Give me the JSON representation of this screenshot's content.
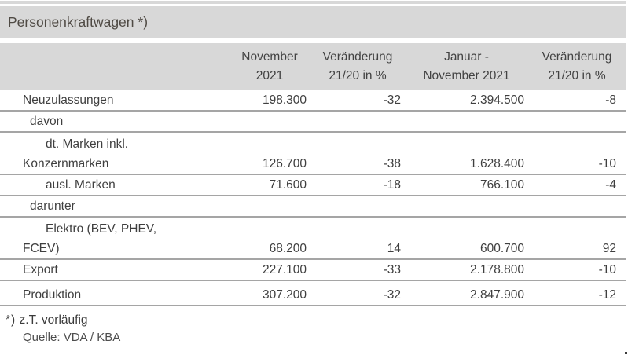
{
  "title": "Personenkraftwagen *)",
  "colors": {
    "band_gray": "#d8d8d8",
    "rule_gray": "#a5a5a5",
    "text_dark": "#3f3f3f"
  },
  "table": {
    "headers": [
      {
        "line1": "November",
        "line2": "2021"
      },
      {
        "line1": "Veränderung",
        "line2": "21/20 in %"
      },
      {
        "line1": "Januar -",
        "line2": "November 2021"
      },
      {
        "line1": "Veränderung",
        "line2": "21/20 in %"
      }
    ],
    "rows": [
      {
        "label": "Neuzulassungen",
        "values": [
          "198.300",
          "-32",
          "2.394.500",
          "-8"
        ]
      },
      {
        "label": "davon",
        "values": [
          "",
          "",
          "",
          ""
        ]
      },
      {
        "label": "dt. Marken inkl.",
        "label2": "Konzernmarken",
        "values": [
          "126.700",
          "-38",
          "1.628.400",
          "-10"
        ]
      },
      {
        "label": "ausl. Marken",
        "values": [
          "71.600",
          "-18",
          "766.100",
          "-4"
        ]
      },
      {
        "label": "darunter",
        "values": [
          "",
          "",
          "",
          ""
        ]
      },
      {
        "label": "Elektro (BEV, PHEV,",
        "label2": "FCEV)",
        "values": [
          "68.200",
          "14",
          "600.700",
          "92"
        ]
      },
      {
        "label": "Export",
        "values": [
          "227.100",
          "-33",
          "2.178.800",
          "-10"
        ]
      },
      {
        "label": "Produktion",
        "values": [
          "307.200",
          "-32",
          "2.847.900",
          "-12"
        ]
      }
    ]
  },
  "footnote": {
    "mark": "*)",
    "text": "z.T. vorläufig"
  },
  "source": "Quelle: VDA / KBA"
}
